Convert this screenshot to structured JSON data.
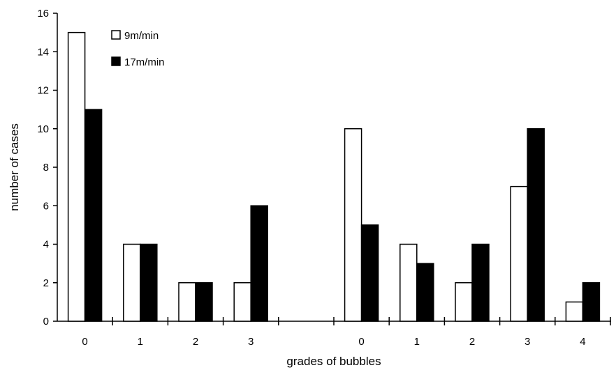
{
  "chart_data": {
    "type": "bar",
    "xlabel": "grades of bubbles",
    "ylabel": "number of cases",
    "ylim": [
      0,
      16
    ],
    "yticks": [
      0,
      2,
      4,
      6,
      8,
      10,
      12,
      14,
      16
    ],
    "grid": false,
    "legend_placement": "top-left",
    "colors": {
      "9m/min": "#ffffff",
      "17m/min": "#000000"
    },
    "groups": [
      {
        "categories": [
          "0",
          "1",
          "2",
          "3"
        ]
      },
      {
        "categories": [
          "0",
          "1",
          "2",
          "3",
          "4"
        ]
      }
    ],
    "series": [
      {
        "name": "9m/min",
        "values": [
          [
            15,
            4,
            2,
            2
          ],
          [
            10,
            4,
            2,
            7,
            1
          ]
        ]
      },
      {
        "name": "17m/min",
        "values": [
          [
            11,
            4,
            2,
            6
          ],
          [
            5,
            3,
            4,
            10,
            2
          ]
        ]
      }
    ]
  }
}
